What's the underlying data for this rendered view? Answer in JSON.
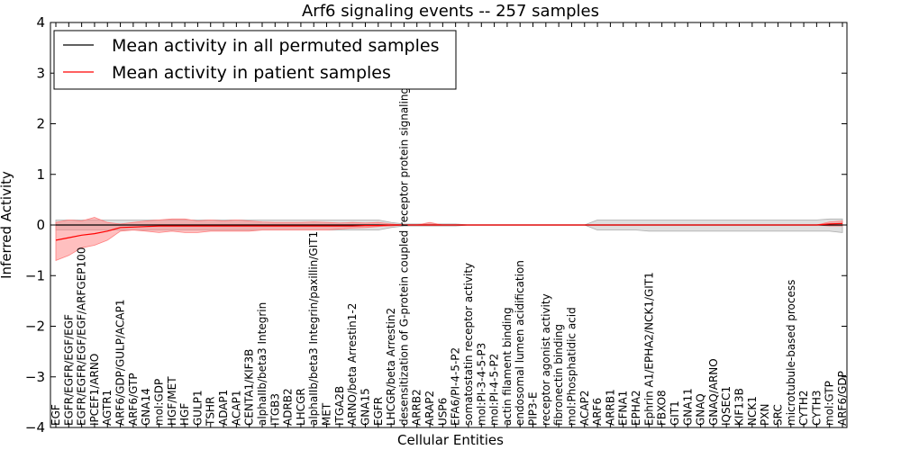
{
  "chart_data": {
    "type": "line",
    "title": "Arf6 signaling events -- 257 samples",
    "xlabel": "Cellular Entities",
    "ylabel": "Inferred Activity",
    "ylim": [
      -4,
      4
    ],
    "yticks": [
      4,
      3,
      2,
      1,
      0,
      -1,
      -2,
      -3,
      -4
    ],
    "ytick_labels": [
      "4",
      "3",
      "2",
      "1",
      "0",
      "−1",
      "−2",
      "−3",
      "−4"
    ],
    "grid": false,
    "legend_position": "top-left",
    "categories": [
      "EGF",
      "EGFR/EGFR/EGF/EGF",
      "EGFR/EGFR/EGF/EGF/ARFGEP100",
      "IPCEF1/ARNO",
      "AGTR1",
      "ARF6/GDP/GULP/ACAP1",
      "ARF6/GTP",
      "GNA14",
      "mol:GDP",
      "HGF/MET",
      "HGF",
      "GULP1",
      "TSHR",
      "ADAP1",
      "ACAP1",
      "CENTA1/KIF3B",
      "alphaIIb/beta3 Integrin",
      "ITGB3",
      "ADRB2",
      "LHCGR",
      "alphaIIb/beta3 Integrin/paxillin/GIT1",
      "MET",
      "ITGA2B",
      "ARNO/beta Arrestin1-2",
      "GNA15",
      "EGFR",
      "LHCGR/beta Arrestin2",
      "desensitization of G-protein coupled receptor protein signaling pathway",
      "ARRB2",
      "ARAP2",
      "USP6",
      "EFA6/PI-4-5-P2",
      "somatostatin receptor activity",
      "mol:PI-3-4-5-P3",
      "mol:PI-4-5-P2",
      "actin filament binding",
      "endosomal lumen acidification",
      "PIP3-E",
      "receptor agonist activity",
      "fibronectin binding",
      "mol:Phosphatidic acid",
      "ACAP2",
      "ARF6",
      "ARRB1",
      "EFNA1",
      "EPHA2",
      "Ephrin A1/EPHA2/NCK1/GIT1",
      "FBXO8",
      "GIT1",
      "GNA11",
      "GNAQ",
      "GNAQ/ARNO",
      "IQSEC1",
      "KIF13B",
      "NCK1",
      "PXN",
      "SRC",
      "microtubule-based process",
      "CYTH2",
      "CYTH3",
      "mol:GTP",
      "ARF6/GDP"
    ],
    "series": [
      {
        "name": "Mean activity in all permuted samples",
        "color": "#000000",
        "band_color": "#b0b0b0",
        "values": [
          0,
          0,
          0,
          0,
          0,
          0,
          0,
          0,
          0,
          0,
          0,
          0,
          0,
          0,
          0,
          0,
          0,
          0,
          0,
          0,
          0,
          0,
          0,
          0,
          0,
          0,
          0,
          0,
          0,
          0,
          0,
          0,
          0,
          0,
          0,
          0,
          0,
          0,
          0,
          0,
          0,
          0,
          0,
          0,
          0,
          0,
          0,
          0,
          0,
          0,
          0,
          0,
          0,
          0,
          0,
          0,
          0,
          0,
          0,
          0,
          0,
          0
        ],
        "lower": [
          -0.1,
          -0.1,
          -0.1,
          -0.1,
          -0.1,
          -0.1,
          -0.1,
          -0.1,
          -0.1,
          -0.1,
          -0.1,
          -0.1,
          -0.1,
          -0.1,
          -0.1,
          -0.1,
          -0.1,
          -0.1,
          -0.1,
          -0.1,
          -0.1,
          -0.1,
          -0.1,
          -0.1,
          -0.1,
          -0.1,
          -0.05,
          -0.02,
          -0.02,
          -0.02,
          -0.02,
          -0.02,
          0,
          0,
          0,
          0,
          0,
          0,
          0,
          0,
          0,
          0,
          -0.1,
          -0.1,
          -0.1,
          -0.1,
          -0.12,
          -0.12,
          -0.12,
          -0.12,
          -0.12,
          -0.12,
          -0.12,
          -0.12,
          -0.12,
          -0.12,
          -0.12,
          -0.12,
          -0.12,
          -0.12,
          -0.12,
          -0.15
        ],
        "upper": [
          0.1,
          0.1,
          0.1,
          0.1,
          0.1,
          0.1,
          0.1,
          0.1,
          0.1,
          0.1,
          0.1,
          0.1,
          0.1,
          0.1,
          0.1,
          0.1,
          0.1,
          0.1,
          0.1,
          0.1,
          0.1,
          0.1,
          0.1,
          0.1,
          0.1,
          0.1,
          0.05,
          0.02,
          0.02,
          0.02,
          0.02,
          0.02,
          0,
          0,
          0,
          0,
          0,
          0,
          0,
          0,
          0,
          0,
          0.1,
          0.1,
          0.1,
          0.1,
          0.1,
          0.1,
          0.1,
          0.1,
          0.1,
          0.1,
          0.1,
          0.1,
          0.1,
          0.1,
          0.1,
          0.1,
          0.1,
          0.1,
          0.12,
          0.12
        ]
      },
      {
        "name": "Mean activity in patient samples",
        "color": "#ff0000",
        "band_color": "#ff7f7f",
        "values": [
          -0.3,
          -0.25,
          -0.2,
          -0.17,
          -0.12,
          -0.05,
          -0.04,
          -0.03,
          -0.02,
          -0.02,
          -0.02,
          -0.02,
          -0.02,
          -0.02,
          -0.02,
          -0.02,
          -0.02,
          -0.02,
          -0.02,
          -0.02,
          -0.02,
          -0.02,
          -0.02,
          -0.02,
          -0.01,
          -0.01,
          0,
          0,
          0,
          0,
          0,
          0,
          0,
          0,
          0,
          0,
          0,
          0,
          0,
          0,
          0,
          0,
          0,
          0,
          0,
          0,
          0,
          0,
          0,
          0,
          0,
          0,
          0,
          0,
          0,
          0,
          0,
          0,
          0,
          0,
          0.02,
          0.03
        ],
        "lower": [
          -0.7,
          -0.6,
          -0.45,
          -0.4,
          -0.3,
          -0.12,
          -0.1,
          -0.12,
          -0.15,
          -0.12,
          -0.15,
          -0.15,
          -0.12,
          -0.12,
          -0.12,
          -0.12,
          -0.1,
          -0.1,
          -0.1,
          -0.1,
          -0.1,
          -0.1,
          -0.08,
          -0.06,
          -0.05,
          -0.03,
          -0.02,
          0,
          0,
          0,
          0,
          0,
          0,
          0,
          0,
          0,
          0,
          0,
          0,
          0,
          0,
          0,
          0,
          0,
          0,
          0,
          0,
          0,
          0,
          0,
          0,
          0,
          0,
          0,
          0,
          0,
          0,
          0,
          0,
          0,
          -0.02,
          -0.02
        ],
        "upper": [
          0.05,
          0.1,
          0.08,
          0.15,
          0.05,
          0.02,
          0.05,
          0.08,
          0.1,
          0.12,
          0.12,
          0.08,
          0.1,
          0.08,
          0.1,
          0.08,
          0.06,
          0.05,
          0.05,
          0.05,
          0.06,
          0.05,
          0.04,
          0.05,
          0.04,
          0.05,
          0.02,
          0,
          0,
          0.05,
          0,
          0,
          0,
          0,
          0,
          0,
          0,
          0,
          0,
          0,
          0,
          0,
          0,
          0,
          0,
          0,
          0,
          0,
          0,
          0,
          0,
          0,
          0,
          0,
          0,
          0,
          0,
          0,
          0,
          0,
          0.06,
          0.08
        ]
      }
    ]
  }
}
